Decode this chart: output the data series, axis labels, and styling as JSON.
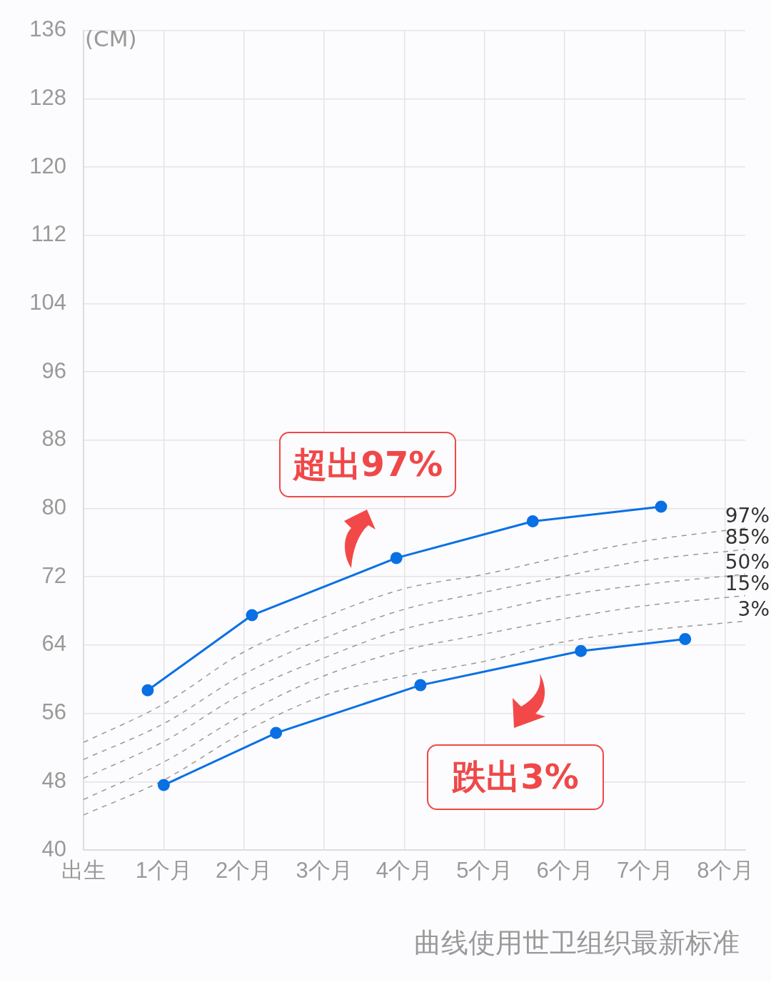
{
  "chart_data": {
    "type": "line",
    "ylabel": "(CM)",
    "xlim": [
      0,
      8.25
    ],
    "xticks": [
      {
        "value": 0,
        "label": "出生"
      },
      {
        "value": 1,
        "label": "1个月"
      },
      {
        "value": 2,
        "label": "2个月"
      },
      {
        "value": 3,
        "label": "3个月"
      },
      {
        "value": 4,
        "label": "4个月"
      },
      {
        "value": 5,
        "label": "5个月"
      },
      {
        "value": 6,
        "label": "6个月"
      },
      {
        "value": 7,
        "label": "7个月"
      },
      {
        "value": 8,
        "label": "8个月"
      }
    ],
    "ylim": [
      40,
      136
    ],
    "yticks": [
      40,
      48,
      56,
      64,
      72,
      80,
      88,
      96,
      104,
      112,
      120,
      128,
      136
    ],
    "grid": true,
    "legend": false,
    "series": [
      {
        "color": "#0a70e4",
        "x": [
          0.8,
          2.1,
          3.9,
          5.6,
          7.2
        ],
        "values": [
          58.7,
          67.5,
          74.2,
          78.5,
          80.2
        ],
        "marker": "circle",
        "line_style": "solid"
      },
      {
        "color": "#0a70e4",
        "x": [
          1.0,
          2.4,
          4.2,
          6.2,
          7.5
        ],
        "values": [
          47.6,
          53.7,
          59.3,
          63.3,
          64.7
        ],
        "marker": "circle",
        "line_style": "solid"
      },
      {
        "name": "97%",
        "color": "#999999",
        "x": [
          0,
          1,
          2,
          3,
          4,
          5,
          6,
          7,
          8.25
        ],
        "values": [
          52.6,
          57.1,
          63.2,
          67.3,
          70.6,
          72.3,
          74.4,
          76.2,
          77.7
        ],
        "marker": "none",
        "line_style": "dashed"
      },
      {
        "name": "85%",
        "color": "#999999",
        "x": [
          0,
          1,
          2,
          3,
          4,
          5,
          6,
          7,
          8.25
        ],
        "values": [
          50.6,
          54.8,
          60.6,
          64.8,
          68.2,
          70.2,
          72.1,
          73.9,
          75.2
        ],
        "marker": "none",
        "line_style": "dashed"
      },
      {
        "name": "50%",
        "color": "#999999",
        "x": [
          0,
          1,
          2,
          3,
          4,
          5,
          6,
          7,
          8.25
        ],
        "values": [
          48.4,
          52.7,
          58.4,
          62.5,
          65.9,
          67.8,
          69.8,
          71.1,
          72.3
        ],
        "marker": "none",
        "line_style": "dashed"
      },
      {
        "name": "15%",
        "color": "#999999",
        "x": [
          0,
          1,
          2,
          3,
          4,
          5,
          6,
          7,
          8.25
        ],
        "values": [
          45.9,
          50.3,
          55.9,
          60.4,
          63.4,
          65.3,
          67.1,
          68.6,
          69.8
        ],
        "marker": "none",
        "line_style": "dashed"
      },
      {
        "name": "3%",
        "color": "#999999",
        "x": [
          0,
          1,
          2,
          3,
          4,
          5,
          6,
          7,
          8.25
        ],
        "values": [
          44.1,
          48.2,
          53.8,
          58.1,
          60.4,
          62.1,
          64.4,
          65.7,
          66.8
        ],
        "marker": "none",
        "line_style": "dashed"
      }
    ],
    "annotations": [
      "超出97%",
      "跌出3%",
      "曲线使用世卫组织最新标准"
    ]
  }
}
